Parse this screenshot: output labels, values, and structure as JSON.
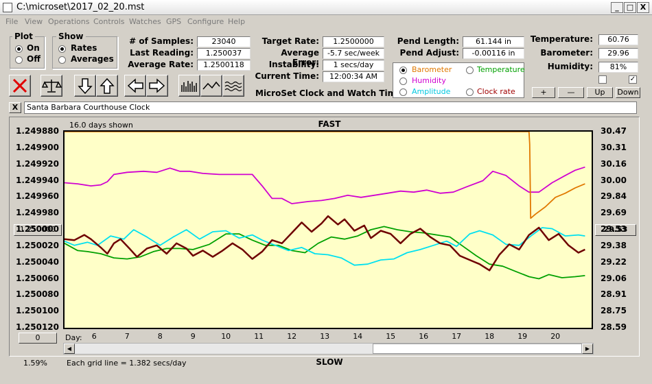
{
  "window": {
    "title": "C:\\microset\\2017_02_20.mst",
    "minimize": "_",
    "maximize": "□",
    "close": "X"
  },
  "menu": [
    "File",
    "View",
    "Operations",
    "Controls",
    "Watches",
    "GPS",
    "Configure",
    "Help"
  ],
  "plot_group": {
    "title": "Plot",
    "options": [
      "On",
      "Off"
    ],
    "selected": "On"
  },
  "show_group": {
    "title": "Show",
    "options": [
      "Rates",
      "Averages"
    ],
    "selected": "Rates"
  },
  "stats_left": [
    {
      "label": "# of Samples:",
      "value": "23040"
    },
    {
      "label": "Last Reading:",
      "value": "1.250037"
    },
    {
      "label": "Average Rate:",
      "value": "1.2500118"
    }
  ],
  "stats_mid": [
    {
      "label": "Target Rate:",
      "value": "1.2500000"
    },
    {
      "label": "Average Error:",
      "value": "-5.7 sec/week"
    },
    {
      "label": "Instability:",
      "value": "1 secs/day"
    },
    {
      "label": "Current Time:",
      "value": "12:00:34 AM"
    }
  ],
  "pend": [
    {
      "label": "Pend Length:",
      "value": "61.144 in"
    },
    {
      "label": "Pend Adjust:",
      "value": "-0.00116 in"
    }
  ],
  "env": [
    {
      "label": "Temperature:",
      "value": "60.76"
    },
    {
      "label": "Barometer:",
      "value": "29.96"
    },
    {
      "label": "Humidity:",
      "value": "81%"
    }
  ],
  "env_buttons": [
    "+",
    "—",
    "Up",
    "Down"
  ],
  "series_select": {
    "options": [
      {
        "label": "Barometer",
        "color": "#e07800",
        "selected": true
      },
      {
        "label": "Temperature",
        "color": "#00a000",
        "selected": false
      },
      {
        "label": "Humidity",
        "color": "#d000d0",
        "selected": false
      },
      {
        "label": "Clock rate",
        "color": "#a00000",
        "selected": false
      },
      {
        "label": "Amplitude",
        "color": "#00c8e0",
        "selected": false
      }
    ]
  },
  "app_subtitle": "MicroSet Clock and Watch Timer",
  "clock_name": "Santa Barbara Courthouse Clock",
  "close_x": "X",
  "chart_data": {
    "type": "line",
    "top_label": "FAST",
    "bottom_label": "SLOW",
    "days_shown": "16.0 days shown",
    "x_axis_label": "Day:",
    "x_ticks": [
      "6",
      "7",
      "8",
      "9",
      "10",
      "11",
      "12",
      "13",
      "14",
      "15",
      "16",
      "17",
      "18",
      "19",
      "20"
    ],
    "xlim": [
      5.1,
      21.1
    ],
    "left_ticks": [
      "1.249880",
      "1.249900",
      "1.249920",
      "1.249940",
      "1.249960",
      "1.249980",
      "1.250000",
      "1.250020",
      "1.250040",
      "1.250060",
      "1.250080",
      "1.250100",
      "1.250120"
    ],
    "left_ylim": [
      1.24988,
      1.25012
    ],
    "right_ticks": [
      "30.47",
      "30.31",
      "30.16",
      "30.00",
      "29.84",
      "29.69",
      "29.53",
      "29.38",
      "29.22",
      "29.06",
      "28.91",
      "28.75",
      "28.59"
    ],
    "right_ylim": [
      28.59,
      30.47
    ],
    "left_button": "1.250000",
    "right_button": "29.53",
    "bottom_left_button": "0",
    "grid_note": "Each grid line = 1.382 secs/day",
    "percent": "1.59%",
    "series": [
      {
        "color": "#d000d0",
        "x": [
          5.1,
          5.5,
          5.9,
          6.2,
          6.4,
          6.6,
          7.0,
          7.5,
          7.9,
          8.3,
          8.6,
          8.9,
          9.3,
          9.8,
          10.3,
          10.8,
          11.1,
          11.4,
          11.7,
          12.0,
          12.5,
          12.9,
          13.3,
          13.7,
          14.1,
          14.5,
          14.9,
          15.3,
          15.7,
          16.1,
          16.5,
          16.9,
          17.3,
          17.8,
          18.1,
          18.5,
          18.9,
          19.2,
          19.5,
          19.9,
          20.3,
          20.6,
          20.9
        ],
        "y": [
          29.98,
          29.97,
          29.95,
          29.96,
          29.99,
          30.06,
          30.08,
          30.09,
          30.08,
          30.12,
          30.09,
          30.09,
          30.07,
          30.06,
          30.06,
          30.06,
          29.95,
          29.83,
          29.83,
          29.78,
          29.8,
          29.81,
          29.83,
          29.86,
          29.84,
          29.86,
          29.88,
          29.9,
          29.89,
          29.91,
          29.88,
          29.89,
          29.94,
          30.0,
          30.09,
          30.05,
          29.95,
          29.89,
          29.89,
          29.98,
          30.05,
          30.1,
          30.13
        ]
      },
      {
        "color": "#00a000",
        "x": [
          5.1,
          5.5,
          5.8,
          6.2,
          6.6,
          7.0,
          7.4,
          7.8,
          8.2,
          8.6,
          9.0,
          9.5,
          10.0,
          10.4,
          10.8,
          11.2,
          11.6,
          12.0,
          12.4,
          12.8,
          13.2,
          13.6,
          14.0,
          14.4,
          14.8,
          15.2,
          15.6,
          16.0,
          16.4,
          16.8,
          17.2,
          17.6,
          18.0,
          18.4,
          18.8,
          19.2,
          19.5,
          19.8,
          20.2,
          20.6,
          20.9
        ],
        "y": [
          29.4,
          29.33,
          29.32,
          29.3,
          29.26,
          29.25,
          29.27,
          29.32,
          29.35,
          29.35,
          29.34,
          29.39,
          29.49,
          29.49,
          29.43,
          29.38,
          29.38,
          29.33,
          29.31,
          29.4,
          29.46,
          29.44,
          29.47,
          29.53,
          29.56,
          29.53,
          29.51,
          29.5,
          29.48,
          29.46,
          29.37,
          29.28,
          29.2,
          29.18,
          29.13,
          29.08,
          29.06,
          29.1,
          29.07,
          29.08,
          29.09
        ]
      },
      {
        "color": "#00e0f0",
        "x": [
          5.1,
          5.4,
          5.8,
          6.1,
          6.5,
          6.9,
          7.2,
          7.6,
          8.0,
          8.4,
          8.8,
          9.2,
          9.6,
          10.0,
          10.4,
          10.8,
          11.1,
          11.5,
          11.9,
          12.3,
          12.7,
          13.1,
          13.5,
          13.9,
          14.3,
          14.7,
          15.1,
          15.5,
          15.9,
          16.3,
          16.7,
          17.0,
          17.4,
          17.7,
          18.1,
          18.5,
          18.9,
          19.3,
          19.6,
          19.9,
          20.3,
          20.7,
          20.9
        ],
        "y": [
          29.42,
          29.38,
          29.41,
          29.38,
          29.47,
          29.44,
          29.53,
          29.46,
          29.38,
          29.46,
          29.53,
          29.44,
          29.51,
          29.52,
          29.45,
          29.48,
          29.43,
          29.38,
          29.33,
          29.36,
          29.3,
          29.29,
          29.26,
          29.19,
          29.2,
          29.24,
          29.25,
          29.31,
          29.34,
          29.38,
          29.42,
          29.37,
          29.49,
          29.52,
          29.48,
          29.39,
          29.38,
          29.48,
          29.55,
          29.54,
          29.47,
          29.48,
          29.47
        ]
      },
      {
        "color": "#6e0000",
        "x": [
          5.1,
          5.4,
          5.7,
          5.9,
          6.2,
          6.4,
          6.6,
          6.8,
          7.1,
          7.3,
          7.6,
          7.9,
          8.2,
          8.5,
          8.8,
          9.0,
          9.3,
          9.6,
          9.9,
          10.2,
          10.5,
          10.8,
          11.1,
          11.4,
          11.7,
          12.0,
          12.3,
          12.6,
          12.9,
          13.1,
          13.4,
          13.6,
          13.9,
          14.2,
          14.4,
          14.7,
          15.0,
          15.3,
          15.6,
          15.9,
          16.2,
          16.5,
          16.8,
          17.1,
          17.4,
          17.7,
          18.0,
          18.3,
          18.6,
          18.9,
          19.2,
          19.5,
          19.8,
          20.1,
          20.4,
          20.7,
          20.9
        ],
        "y": [
          29.44,
          29.43,
          29.48,
          29.44,
          29.36,
          29.3,
          29.4,
          29.44,
          29.34,
          29.27,
          29.35,
          29.38,
          29.3,
          29.4,
          29.35,
          29.28,
          29.33,
          29.27,
          29.33,
          29.4,
          29.34,
          29.25,
          29.32,
          29.43,
          29.4,
          29.5,
          29.6,
          29.51,
          29.59,
          29.66,
          29.58,
          29.63,
          29.52,
          29.57,
          29.45,
          29.52,
          29.49,
          29.4,
          29.49,
          29.54,
          29.46,
          29.4,
          29.38,
          29.28,
          29.24,
          29.2,
          29.14,
          29.29,
          29.39,
          29.34,
          29.48,
          29.55,
          29.43,
          29.49,
          29.38,
          29.31,
          29.34
        ]
      },
      {
        "color": "#e07800",
        "x": [
          5.1,
          6.0,
          8.0,
          10.0,
          12.0,
          14.0,
          16.0,
          18.0,
          19.0,
          19.2,
          19.22,
          19.25,
          19.4,
          19.7,
          20.0,
          20.3,
          20.6,
          20.9
        ],
        "y": [
          30.47,
          30.47,
          30.47,
          30.47,
          30.47,
          30.47,
          30.47,
          30.47,
          30.47,
          30.47,
          30.35,
          29.64,
          29.68,
          29.75,
          29.84,
          29.88,
          29.93,
          29.97
        ]
      }
    ]
  }
}
